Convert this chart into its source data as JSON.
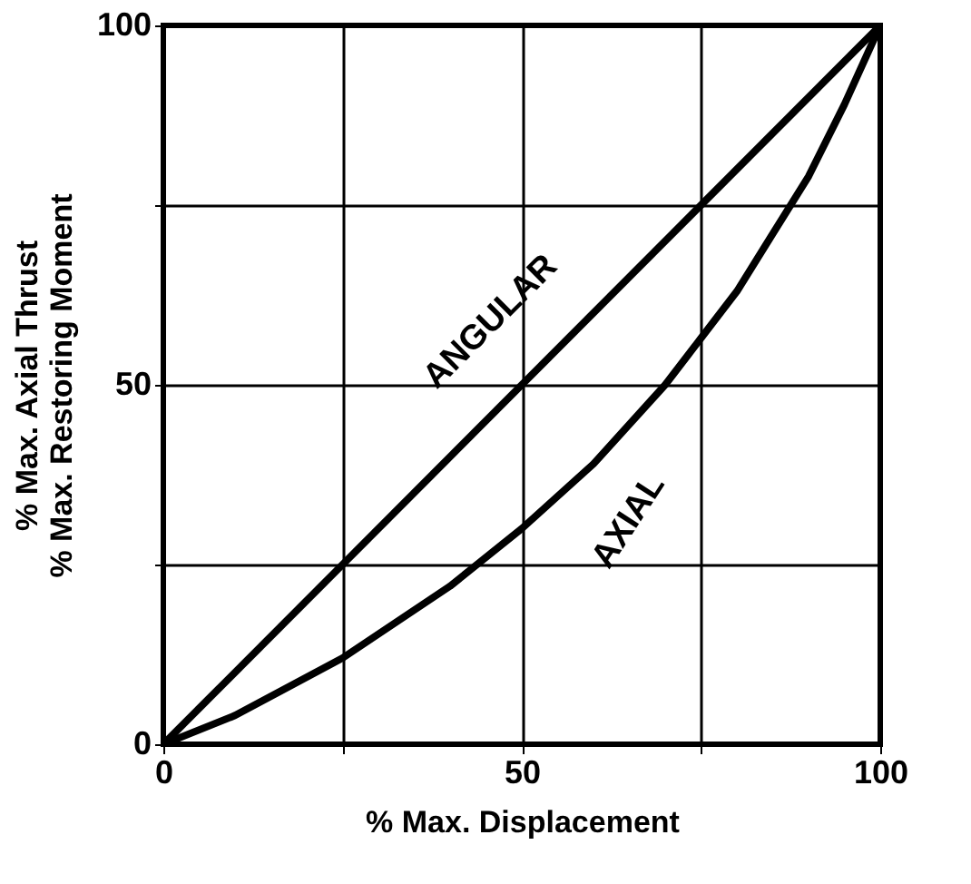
{
  "chart_data": {
    "type": "line",
    "xlabel": "% Max. Displacement",
    "ylabel": "% Max. Axial Thrust\n% Max. Restoring Moment",
    "xlim": [
      0,
      100
    ],
    "ylim": [
      0,
      100
    ],
    "xticks": [
      0,
      {
        "value": 25,
        "label": null
      },
      50,
      {
        "value": 75,
        "label": null
      },
      100
    ],
    "yticks": [
      0,
      {
        "value": 25,
        "label": null
      },
      50,
      {
        "value": 75,
        "label": null
      },
      100
    ],
    "grid": true,
    "marker": "none",
    "line_style": "solid",
    "series": [
      {
        "color": "#000000",
        "x": [
          0,
          100
        ],
        "values": [
          0,
          100
        ]
      },
      {
        "color": "#000000",
        "x": [
          0,
          10,
          25,
          40,
          50,
          60,
          70,
          75,
          80,
          85,
          90,
          95,
          100
        ],
        "values": [
          0,
          4,
          12,
          22,
          30,
          39,
          50,
          56.5,
          63,
          71,
          79,
          89,
          100
        ]
      }
    ],
    "annotations": [
      "ANGULAR",
      "AXIAL"
    ]
  }
}
